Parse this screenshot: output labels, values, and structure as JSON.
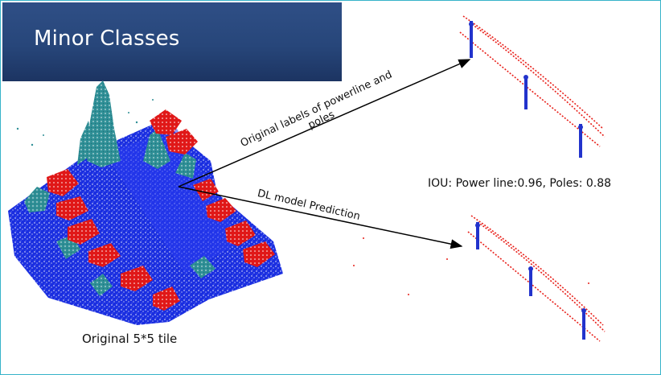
{
  "slide": {
    "title": "Minor Classes",
    "tile_caption": "Original 5*5 tile",
    "arrow_labels": {
      "original": "Original labels of powerline and poles",
      "prediction": "DL model Prediction"
    },
    "iou_text": "IOU: Power line:0.96, Poles: 0.88"
  },
  "colors": {
    "title_bg": "#2b4a80",
    "border": "#36b3c9",
    "ground": "#1a2ee0",
    "building": "#e01818",
    "vegetation": "#2f8f96",
    "powerline": "#e8201a",
    "pole": "#2233cc"
  }
}
